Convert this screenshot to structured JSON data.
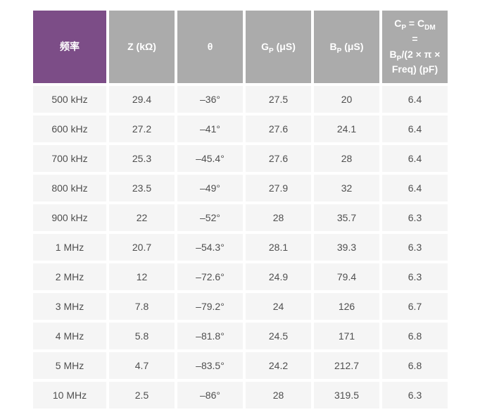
{
  "table": {
    "colors": {
      "header_first_bg": "#7c4d87",
      "header_bg": "#ababab",
      "header_text": "#ffffff",
      "cell_bg": "#f5f5f5",
      "cell_text": "#4f4f4f",
      "grid_gap": "#ffffff"
    },
    "columns": [
      {
        "key": "freq",
        "label": "频率"
      },
      {
        "key": "z",
        "label": "Z (kΩ)"
      },
      {
        "key": "theta",
        "label": "θ"
      },
      {
        "key": "gp",
        "label": "G~P~ (μS)"
      },
      {
        "key": "bp",
        "label": "B~P~ (μS)"
      },
      {
        "key": "cp",
        "label": "C~P~ = C~DM~\n=\nB~P~/(2 × π ×\nFreq) (pF)"
      }
    ],
    "rows": [
      [
        "500 kHz",
        "29.4",
        "–36°",
        "27.5",
        "20",
        "6.4"
      ],
      [
        "600 kHz",
        "27.2",
        "–41°",
        "27.6",
        "24.1",
        "6.4"
      ],
      [
        "700 kHz",
        "25.3",
        "–45.4°",
        "27.6",
        "28",
        "6.4"
      ],
      [
        "800 kHz",
        "23.5",
        "–49°",
        "27.9",
        "32",
        "6.4"
      ],
      [
        "900 kHz",
        "22",
        "–52°",
        "28",
        "35.7",
        "6.3"
      ],
      [
        "1 MHz",
        "20.7",
        "–54.3°",
        "28.1",
        "39.3",
        "6.3"
      ],
      [
        "2 MHz",
        "12",
        "–72.6°",
        "24.9",
        "79.4",
        "6.3"
      ],
      [
        "3 MHz",
        "7.8",
        "–79.2°",
        "24",
        "126",
        "6.7"
      ],
      [
        "4 MHz",
        "5.8",
        "–81.8°",
        "24.5",
        "171",
        "6.8"
      ],
      [
        "5 MHz",
        "4.7",
        "–83.5°",
        "24.2",
        "212.7",
        "6.8"
      ],
      [
        "10 MHz",
        "2.5",
        "–86°",
        "28",
        "319.5",
        "6.3"
      ]
    ]
  },
  "chart_data": {
    "type": "table",
    "title": "",
    "columns": [
      "频率",
      "Z (kΩ)",
      "θ",
      "GP (μS)",
      "BP (μS)",
      "CP = CDM = BP/(2 × π × Freq) (pF)"
    ],
    "rows": [
      [
        "500 kHz",
        29.4,
        -36,
        27.5,
        20,
        6.4
      ],
      [
        "600 kHz",
        27.2,
        -41,
        27.6,
        24.1,
        6.4
      ],
      [
        "700 kHz",
        25.3,
        -45.4,
        27.6,
        28,
        6.4
      ],
      [
        "800 kHz",
        23.5,
        -49,
        27.9,
        32,
        6.4
      ],
      [
        "900 kHz",
        22,
        -52,
        28,
        35.7,
        6.3
      ],
      [
        "1 MHz",
        20.7,
        -54.3,
        28.1,
        39.3,
        6.3
      ],
      [
        "2 MHz",
        12,
        -72.6,
        24.9,
        79.4,
        6.3
      ],
      [
        "3 MHz",
        7.8,
        -79.2,
        24,
        126,
        6.7
      ],
      [
        "4 MHz",
        5.8,
        -81.8,
        24.5,
        171,
        6.8
      ],
      [
        "5 MHz",
        4.7,
        -83.5,
        24.2,
        212.7,
        6.8
      ],
      [
        "10 MHz",
        2.5,
        -86,
        28,
        319.5,
        6.3
      ]
    ],
    "units": {
      "theta": "degrees",
      "gp": "μS",
      "bp": "μS",
      "cp": "pF"
    }
  }
}
